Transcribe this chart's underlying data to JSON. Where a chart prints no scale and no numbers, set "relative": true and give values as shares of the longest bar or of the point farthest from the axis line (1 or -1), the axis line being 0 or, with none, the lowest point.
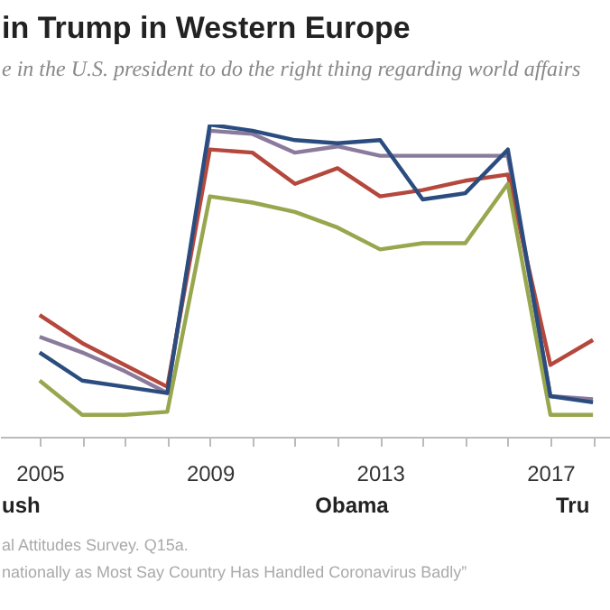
{
  "chart_data": {
    "type": "line",
    "title": "in Trump in Western Europe",
    "subtitle": "e in the U.S. president to do the right thing regarding world affairs",
    "relative": true,
    "x": [
      2005,
      2006,
      2007,
      2008,
      2009,
      2010,
      2011,
      2012,
      2013,
      2014,
      2015,
      2016,
      2017,
      2018
    ],
    "xlim": [
      2004.07,
      2018.4
    ],
    "xticks": [
      {
        "value": 2005,
        "label": "2005"
      },
      {
        "value": 2006,
        "label": null
      },
      {
        "value": 2007,
        "label": null
      },
      {
        "value": 2008,
        "label": null
      },
      {
        "value": 2009,
        "label": "2009"
      },
      {
        "value": 2010,
        "label": null
      },
      {
        "value": 2011,
        "label": null
      },
      {
        "value": 2012,
        "label": null
      },
      {
        "value": 2013,
        "label": "2013"
      },
      {
        "value": 2014,
        "label": null
      },
      {
        "value": 2015,
        "label": null
      },
      {
        "value": 2016,
        "label": null
      },
      {
        "value": 2017,
        "label": "2017"
      },
      {
        "value": 2018,
        "label": null
      }
    ],
    "series": [
      {
        "color": "#8a7a9c",
        "values": [
          0.32,
          0.27,
          0.21,
          0.14,
          0.98,
          0.97,
          0.91,
          0.93,
          0.9,
          0.9,
          0.9,
          0.9,
          0.13,
          0.12
        ]
      },
      {
        "color": "#b5483d",
        "values": [
          0.39,
          0.3,
          0.23,
          0.16,
          0.92,
          0.91,
          0.81,
          0.86,
          0.77,
          0.79,
          0.82,
          0.84,
          0.23,
          0.31
        ]
      },
      {
        "color": "#97a74e",
        "values": [
          0.18,
          0.07,
          0.07,
          0.08,
          0.77,
          0.75,
          0.72,
          0.67,
          0.6,
          0.62,
          0.62,
          0.81,
          0.07,
          0.07
        ]
      },
      {
        "color": "#2b4c7e",
        "values": [
          0.27,
          0.18,
          0.16,
          0.14,
          1.0,
          0.98,
          0.95,
          0.94,
          0.95,
          0.76,
          0.78,
          0.92,
          0.13,
          0.11
        ]
      }
    ],
    "grid": false,
    "legend": false,
    "marker": "none",
    "line_style": "solid",
    "annotations": [
      "ush",
      "Obama",
      "Tru",
      "al Attitudes Survey. Q15a.",
      "nationally as Most Say Country Has Handled Coronavirus Badly”"
    ]
  }
}
